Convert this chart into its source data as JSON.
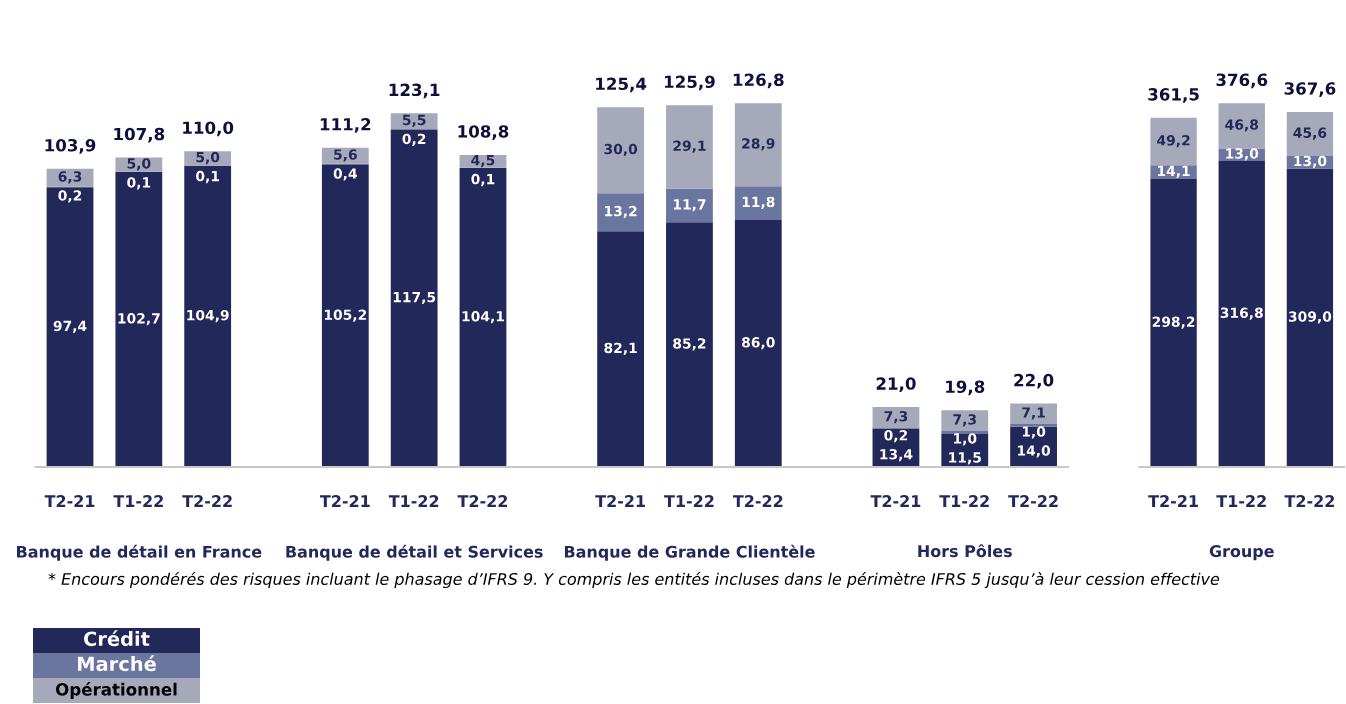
{
  "chart_data": [
    {
      "type": "bar",
      "stacked": true,
      "legend": "bottom left",
      "tick_labels": "x",
      "categories": [
        "T2-21",
        "T1-22",
        "T2-22",
        null,
        "T2-21",
        "T1-22",
        "T2-22",
        null,
        "T2-21",
        "T1-22",
        "T2-22",
        null,
        "T2-21",
        "T1-22",
        "T2-22"
      ],
      "series": [
        {
          "name": "Crédit",
          "color": "#23285a",
          "values": [
            97.4,
            102.7,
            104.9,
            null,
            105.2,
            117.5,
            104.1,
            null,
            82.1,
            85.2,
            86.0,
            null,
            13.4,
            11.5,
            14.0
          ],
          "value_labels": [
            "97,4",
            "102,7",
            "104,9",
            null,
            "105,2",
            "117,5",
            "104,1",
            null,
            "82,1",
            "85,2",
            "86,0",
            null,
            "13,4",
            "11,5",
            "14,0"
          ]
        },
        {
          "name": "Marché",
          "color": "#6a75a0",
          "values": [
            0.2,
            0.1,
            0.1,
            null,
            0.4,
            0.2,
            0.1,
            null,
            13.2,
            11.7,
            11.8,
            null,
            0.2,
            1.0,
            1.0
          ],
          "value_labels": [
            "0,2",
            "0,1",
            "0,1",
            null,
            "0,4",
            "0,2",
            "0,1",
            null,
            "13,2",
            "11,7",
            "11,8",
            null,
            "0,2",
            "1,0",
            "1,0"
          ]
        },
        {
          "name": "Opérationnel",
          "color": "#a6a9b9",
          "values": [
            6.3,
            5.0,
            5.0,
            null,
            5.6,
            5.5,
            4.5,
            null,
            30.0,
            29.1,
            28.9,
            null,
            7.3,
            7.3,
            7.1
          ],
          "value_labels": [
            "6,3",
            "5,0",
            "5,0",
            null,
            "5,6",
            "5,5",
            "4,5",
            null,
            "30,0",
            "29,1",
            "28,9",
            null,
            "7,3",
            "7,3",
            "7,1"
          ]
        }
      ],
      "totals": [
        "103,9",
        "107,8",
        "110,0",
        null,
        "111,2",
        "123,1",
        "108,8",
        null,
        "125,4",
        "125,9",
        "126,8",
        null,
        "21,0",
        "19,8",
        "22,0"
      ],
      "annotations": [
        "Banque de détail en France",
        "Banque de détail et Services",
        "Banque de Grande Clientèle",
        "Hors Pôles",
        "* Encours pondérés des risques incluant le phasage d’IFRS 9. Y compris les entités incluses dans le périmètre IFRS 5 jusqu’à leur cession effective"
      ]
    },
    {
      "type": "bar",
      "stacked": true,
      "tick_labels": "x",
      "categories": [
        "T2-21",
        "T1-22",
        "T2-22"
      ],
      "series": [
        {
          "color": "#23285a",
          "values": [
            298.2,
            316.8,
            309.0
          ],
          "value_labels": [
            "298,2",
            "316,8",
            "309,0"
          ]
        },
        {
          "color": "#6a75a0",
          "values": [
            14.1,
            13.0,
            13.0
          ],
          "value_labels": [
            "14,1",
            "13,0",
            "13,0"
          ]
        },
        {
          "color": "#a6a9b9",
          "values": [
            49.2,
            46.8,
            45.6
          ],
          "value_labels": [
            "49,2",
            "46,8",
            "45,6"
          ]
        }
      ],
      "totals": [
        "361,5",
        "376,6",
        "367,6"
      ],
      "annotations": [
        "Groupe"
      ]
    }
  ]
}
